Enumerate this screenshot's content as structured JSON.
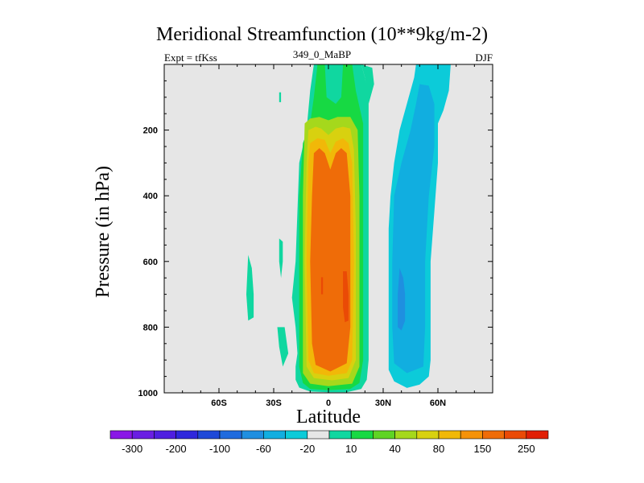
{
  "chart_data": {
    "type": "contour",
    "title": "Meridional Streamfunction (10**9kg/m-2)",
    "subtitle_left": "Expt = tfKss",
    "subtitle_center": "349_0_MaBP",
    "subtitle_right": "DJF",
    "xlabel": "Latitude",
    "ylabel": "Pressure (in hPa)",
    "xlim": [
      -90,
      90
    ],
    "ylim": [
      1000,
      0
    ],
    "x_ticks": [
      {
        "value": -60,
        "label": "60S"
      },
      {
        "value": -30,
        "label": "30S"
      },
      {
        "value": 0,
        "label": "0"
      },
      {
        "value": 30,
        "label": "30N"
      },
      {
        "value": 60,
        "label": "60N"
      }
    ],
    "y_ticks": [
      {
        "value": 200,
        "label": "200"
      },
      {
        "value": 400,
        "label": "400"
      },
      {
        "value": 600,
        "label": "600"
      },
      {
        "value": 800,
        "label": "800"
      },
      {
        "value": 1000,
        "label": "1000"
      }
    ],
    "background_color": "#e6e6e6",
    "colorbar": {
      "colors": [
        "#8a17e6",
        "#6a1ee3",
        "#4f1fe0",
        "#2f28dc",
        "#1f49d8",
        "#1f6bde",
        "#1f8fe0",
        "#11aee0",
        "#0ccbd9",
        "#e6e6e6",
        "#10d7a0",
        "#17d943",
        "#5fd424",
        "#a5d81c",
        "#d8d10f",
        "#f1b808",
        "#f59208",
        "#ef6c08",
        "#ea4a06",
        "#e11f05"
      ],
      "labels": [
        {
          "boundary": 1,
          "text": "-300"
        },
        {
          "boundary": 3,
          "text": "-200"
        },
        {
          "boundary": 5,
          "text": "-100"
        },
        {
          "boundary": 7,
          "text": "-60"
        },
        {
          "boundary": 9,
          "text": "-20"
        },
        {
          "boundary": 11,
          "text": "10"
        },
        {
          "boundary": 13,
          "text": "40"
        },
        {
          "boundary": 15,
          "text": "80"
        },
        {
          "boundary": 17,
          "text": "150"
        },
        {
          "boundary": 19,
          "text": "250"
        }
      ]
    },
    "contour_regions": [
      {
        "name": "positive-cell-10",
        "value": 10,
        "color": "#10d7a0",
        "points": [
          [
            -6,
            0
          ],
          [
            18,
            0
          ],
          [
            20,
            40
          ],
          [
            21,
            70
          ],
          [
            22,
            100
          ],
          [
            22,
            200
          ],
          [
            22,
            300
          ],
          [
            22,
            400
          ],
          [
            22,
            500
          ],
          [
            22,
            600
          ],
          [
            22,
            700
          ],
          [
            22,
            800
          ],
          [
            22,
            900
          ],
          [
            21,
            960
          ],
          [
            18,
            988
          ],
          [
            10,
            998
          ],
          [
            0,
            998
          ],
          [
            -10,
            996
          ],
          [
            -16,
            984
          ],
          [
            -18,
            960
          ],
          [
            -18,
            920
          ],
          [
            -17,
            880
          ],
          [
            -18,
            800
          ],
          [
            -20,
            710
          ],
          [
            -18,
            600
          ],
          [
            -16,
            300
          ],
          [
            -12,
            200
          ],
          [
            -10,
            80
          ],
          [
            -8,
            0
          ]
        ]
      },
      {
        "name": "positive-cell-20",
        "value": 20,
        "color": "#17d943",
        "points": [
          [
            -6,
            0
          ],
          [
            -2,
            0
          ],
          [
            -1,
            100
          ],
          [
            4,
            120
          ],
          [
            7,
            100
          ],
          [
            8,
            0
          ],
          [
            13,
            0
          ],
          [
            15,
            80
          ],
          [
            19,
            180
          ],
          [
            19,
            300
          ],
          [
            19,
            500
          ],
          [
            19,
            700
          ],
          [
            19,
            900
          ],
          [
            17,
            970
          ],
          [
            12,
            988
          ],
          [
            0,
            992
          ],
          [
            -10,
            988
          ],
          [
            -14,
            970
          ],
          [
            -16,
            920
          ],
          [
            -16,
            800
          ],
          [
            -16,
            600
          ],
          [
            -16,
            400
          ],
          [
            -14,
            240
          ],
          [
            -10,
            180
          ],
          [
            -8,
            100
          ]
        ]
      },
      {
        "name": "positive-cell-40",
        "value": 40,
        "color": "#a5d81c",
        "points": [
          [
            -13,
            180
          ],
          [
            -10,
            165
          ],
          [
            -5,
            160
          ],
          [
            0,
            170
          ],
          [
            5,
            160
          ],
          [
            12,
            160
          ],
          [
            16,
            200
          ],
          [
            17,
            400
          ],
          [
            17,
            700
          ],
          [
            17,
            920
          ],
          [
            13,
            972
          ],
          [
            0,
            980
          ],
          [
            -10,
            972
          ],
          [
            -14,
            940
          ],
          [
            -14,
            700
          ],
          [
            -14,
            400
          ]
        ]
      },
      {
        "name": "positive-cell-80",
        "value": 80,
        "color": "#d8d10f",
        "points": [
          [
            -11,
            200
          ],
          [
            -7,
            190
          ],
          [
            -4,
            195
          ],
          [
            0,
            215
          ],
          [
            4,
            195
          ],
          [
            8,
            190
          ],
          [
            12,
            195
          ],
          [
            14,
            260
          ],
          [
            15,
            500
          ],
          [
            15,
            900
          ],
          [
            11,
            955
          ],
          [
            2,
            962
          ],
          [
            -8,
            955
          ],
          [
            -12,
            920
          ],
          [
            -13,
            600
          ],
          [
            -12,
            300
          ]
        ]
      },
      {
        "name": "positive-cell-100",
        "value": 100,
        "color": "#f1b808",
        "points": [
          [
            -10,
            240
          ],
          [
            -6,
            225
          ],
          [
            -2,
            230
          ],
          [
            1,
            270
          ],
          [
            4,
            235
          ],
          [
            8,
            225
          ],
          [
            11,
            240
          ],
          [
            13,
            300
          ],
          [
            14,
            600
          ],
          [
            13,
            900
          ],
          [
            10,
            940
          ],
          [
            0,
            948
          ],
          [
            -8,
            940
          ],
          [
            -11,
            900
          ],
          [
            -12,
            600
          ],
          [
            -11,
            300
          ]
        ]
      },
      {
        "name": "positive-cell-150",
        "value": 150,
        "color": "#ef6c08",
        "points": [
          [
            -8,
            270
          ],
          [
            -5,
            255
          ],
          [
            -2,
            270
          ],
          [
            1,
            320
          ],
          [
            4,
            270
          ],
          [
            7,
            255
          ],
          [
            10,
            270
          ],
          [
            12,
            400
          ],
          [
            12,
            800
          ],
          [
            10,
            910
          ],
          [
            1,
            935
          ],
          [
            -7,
            915
          ],
          [
            -9,
            850
          ],
          [
            -10,
            600
          ],
          [
            -9,
            400
          ]
        ]
      },
      {
        "name": "positive-cell-250-nh",
        "value": 250,
        "color": "#ea4a06",
        "points": [
          [
            8,
            630
          ],
          [
            10,
            630
          ],
          [
            11,
            700
          ],
          [
            11,
            780
          ],
          [
            9,
            785
          ],
          [
            8,
            740
          ]
        ]
      },
      {
        "name": "positive-cell-250-sh",
        "value": 250,
        "color": "#ea4a06",
        "points": [
          [
            -4,
            648
          ],
          [
            -3,
            648
          ],
          [
            -3,
            700
          ],
          [
            -4,
            700
          ]
        ]
      },
      {
        "name": "negative-cell-20",
        "value": -20,
        "color": "#0ccbd9",
        "points": [
          [
            48,
            0
          ],
          [
            67,
            0
          ],
          [
            66,
            80
          ],
          [
            63,
            140
          ],
          [
            60,
            180
          ],
          [
            60,
            300
          ],
          [
            58,
            450
          ],
          [
            56,
            600
          ],
          [
            56,
            800
          ],
          [
            56,
            900
          ],
          [
            55,
            950
          ],
          [
            50,
            975
          ],
          [
            43,
            985
          ],
          [
            36,
            965
          ],
          [
            33,
            930
          ],
          [
            33,
            800
          ],
          [
            33,
            700
          ],
          [
            33,
            600
          ],
          [
            33,
            500
          ],
          [
            34,
            400
          ],
          [
            36,
            300
          ],
          [
            39,
            200
          ],
          [
            44,
            100
          ],
          [
            47,
            40
          ]
        ]
      },
      {
        "name": "negative-cell-60",
        "value": -60,
        "color": "#11aee0",
        "points": [
          [
            50,
            60
          ],
          [
            55,
            65
          ],
          [
            58,
            120
          ],
          [
            58,
            250
          ],
          [
            55,
            400
          ],
          [
            53,
            600
          ],
          [
            53,
            800
          ],
          [
            52,
            920
          ],
          [
            43,
            940
          ],
          [
            36,
            910
          ],
          [
            35,
            800
          ],
          [
            35,
            600
          ],
          [
            36,
            400
          ],
          [
            40,
            300
          ],
          [
            45,
            200
          ],
          [
            48,
            120
          ]
        ]
      },
      {
        "name": "negative-cell-100",
        "value": -100,
        "color": "#1f8fe0",
        "points": [
          [
            39,
            620
          ],
          [
            41,
            650
          ],
          [
            42,
            700
          ],
          [
            42,
            780
          ],
          [
            40,
            810
          ],
          [
            38,
            800
          ],
          [
            38,
            700
          ]
        ]
      },
      {
        "name": "isolated-10-a",
        "value": 10,
        "color": "#10d7a0",
        "points": [
          [
            -44,
            580
          ],
          [
            -42,
            620
          ],
          [
            -41,
            700
          ],
          [
            -41,
            770
          ],
          [
            -44,
            780
          ],
          [
            -45,
            700
          ]
        ]
      },
      {
        "name": "isolated-10-b",
        "value": 10,
        "color": "#10d7a0",
        "points": [
          [
            -27,
            530
          ],
          [
            -25,
            540
          ],
          [
            -25,
            600
          ],
          [
            -26,
            650
          ],
          [
            -27,
            600
          ]
        ]
      },
      {
        "name": "isolated-10-c",
        "value": 10,
        "color": "#10d7a0",
        "points": [
          [
            -27,
            85
          ],
          [
            -26,
            85
          ],
          [
            -26,
            115
          ],
          [
            -27,
            115
          ]
        ]
      },
      {
        "name": "isolated-10-d",
        "value": 10,
        "color": "#10d7a0",
        "points": [
          [
            -28,
            800
          ],
          [
            -24,
            800
          ],
          [
            -22,
            880
          ],
          [
            -25,
            920
          ],
          [
            -27,
            860
          ]
        ]
      },
      {
        "name": "nh-upper-tongue",
        "value": 10,
        "color": "#10d7a0",
        "points": [
          [
            18,
            0
          ],
          [
            24,
            10
          ],
          [
            25,
            60
          ],
          [
            22,
            120
          ],
          [
            20,
            40
          ]
        ]
      }
    ]
  }
}
